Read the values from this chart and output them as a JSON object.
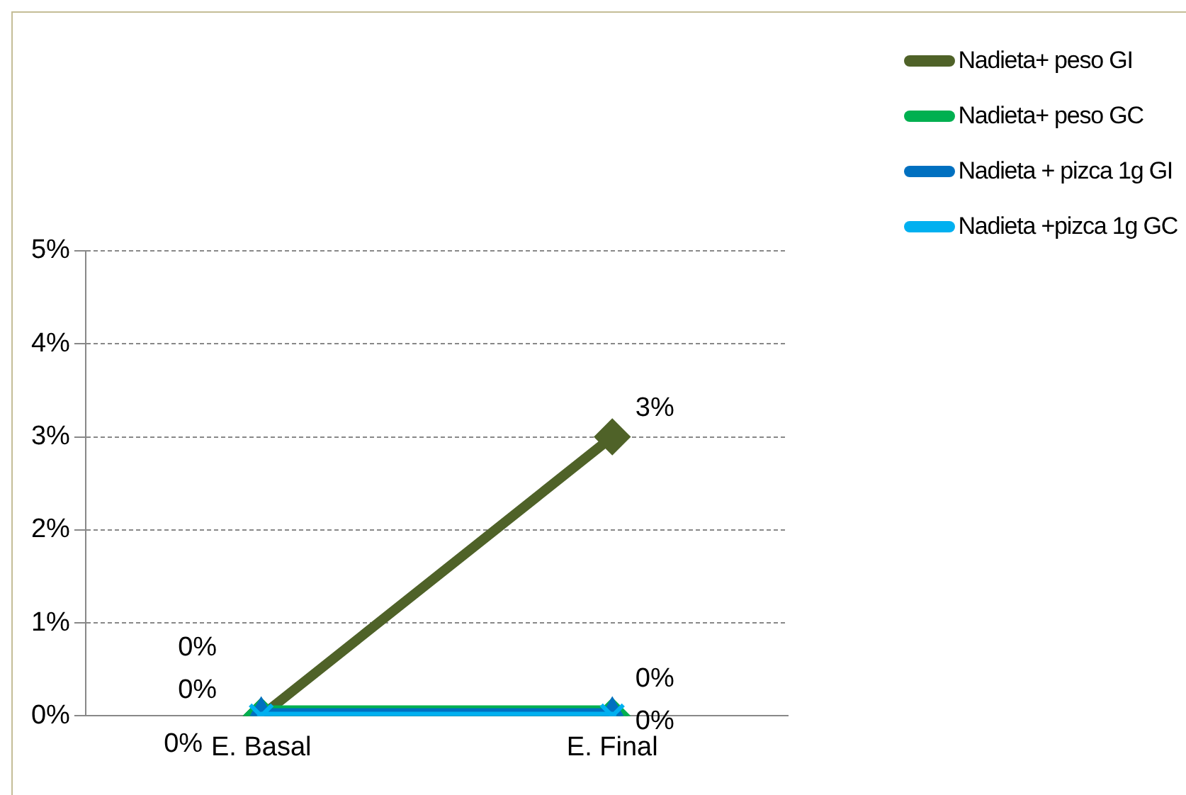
{
  "chart_data": {
    "type": "line",
    "categories": [
      "E. Basal",
      "E. Final"
    ],
    "series": [
      {
        "name": "Nadieta+ peso GI",
        "color": "#4f6228",
        "values": [
          0,
          3
        ],
        "marker": "diamond",
        "value_labels": [
          "0%",
          "3%"
        ]
      },
      {
        "name": "Nadieta+ peso GC",
        "color": "#00b050",
        "values": [
          0,
          0
        ],
        "marker": "diamond",
        "value_labels": [
          "0%",
          "0%"
        ]
      },
      {
        "name": "Nadieta + pizca 1g GI",
        "color": "#0070c0",
        "values": [
          0,
          0
        ],
        "marker": "triangle",
        "value_labels": [
          "0%",
          "0%"
        ]
      },
      {
        "name": "Nadieta +pizca 1g GC",
        "color": "#00b0f0",
        "values": [
          0,
          0
        ],
        "marker": "cross",
        "value_labels": [
          null,
          null
        ]
      }
    ],
    "ylim": [
      0,
      5
    ],
    "yticks": [
      {
        "value": 0,
        "label": "0%"
      },
      {
        "value": 1,
        "label": "1%"
      },
      {
        "value": 2,
        "label": "2%"
      },
      {
        "value": 3,
        "label": "3%"
      },
      {
        "value": 4,
        "label": "4%"
      },
      {
        "value": 5,
        "label": "5%"
      }
    ],
    "grid": "y",
    "legend": "top right",
    "line_style": "solid"
  }
}
